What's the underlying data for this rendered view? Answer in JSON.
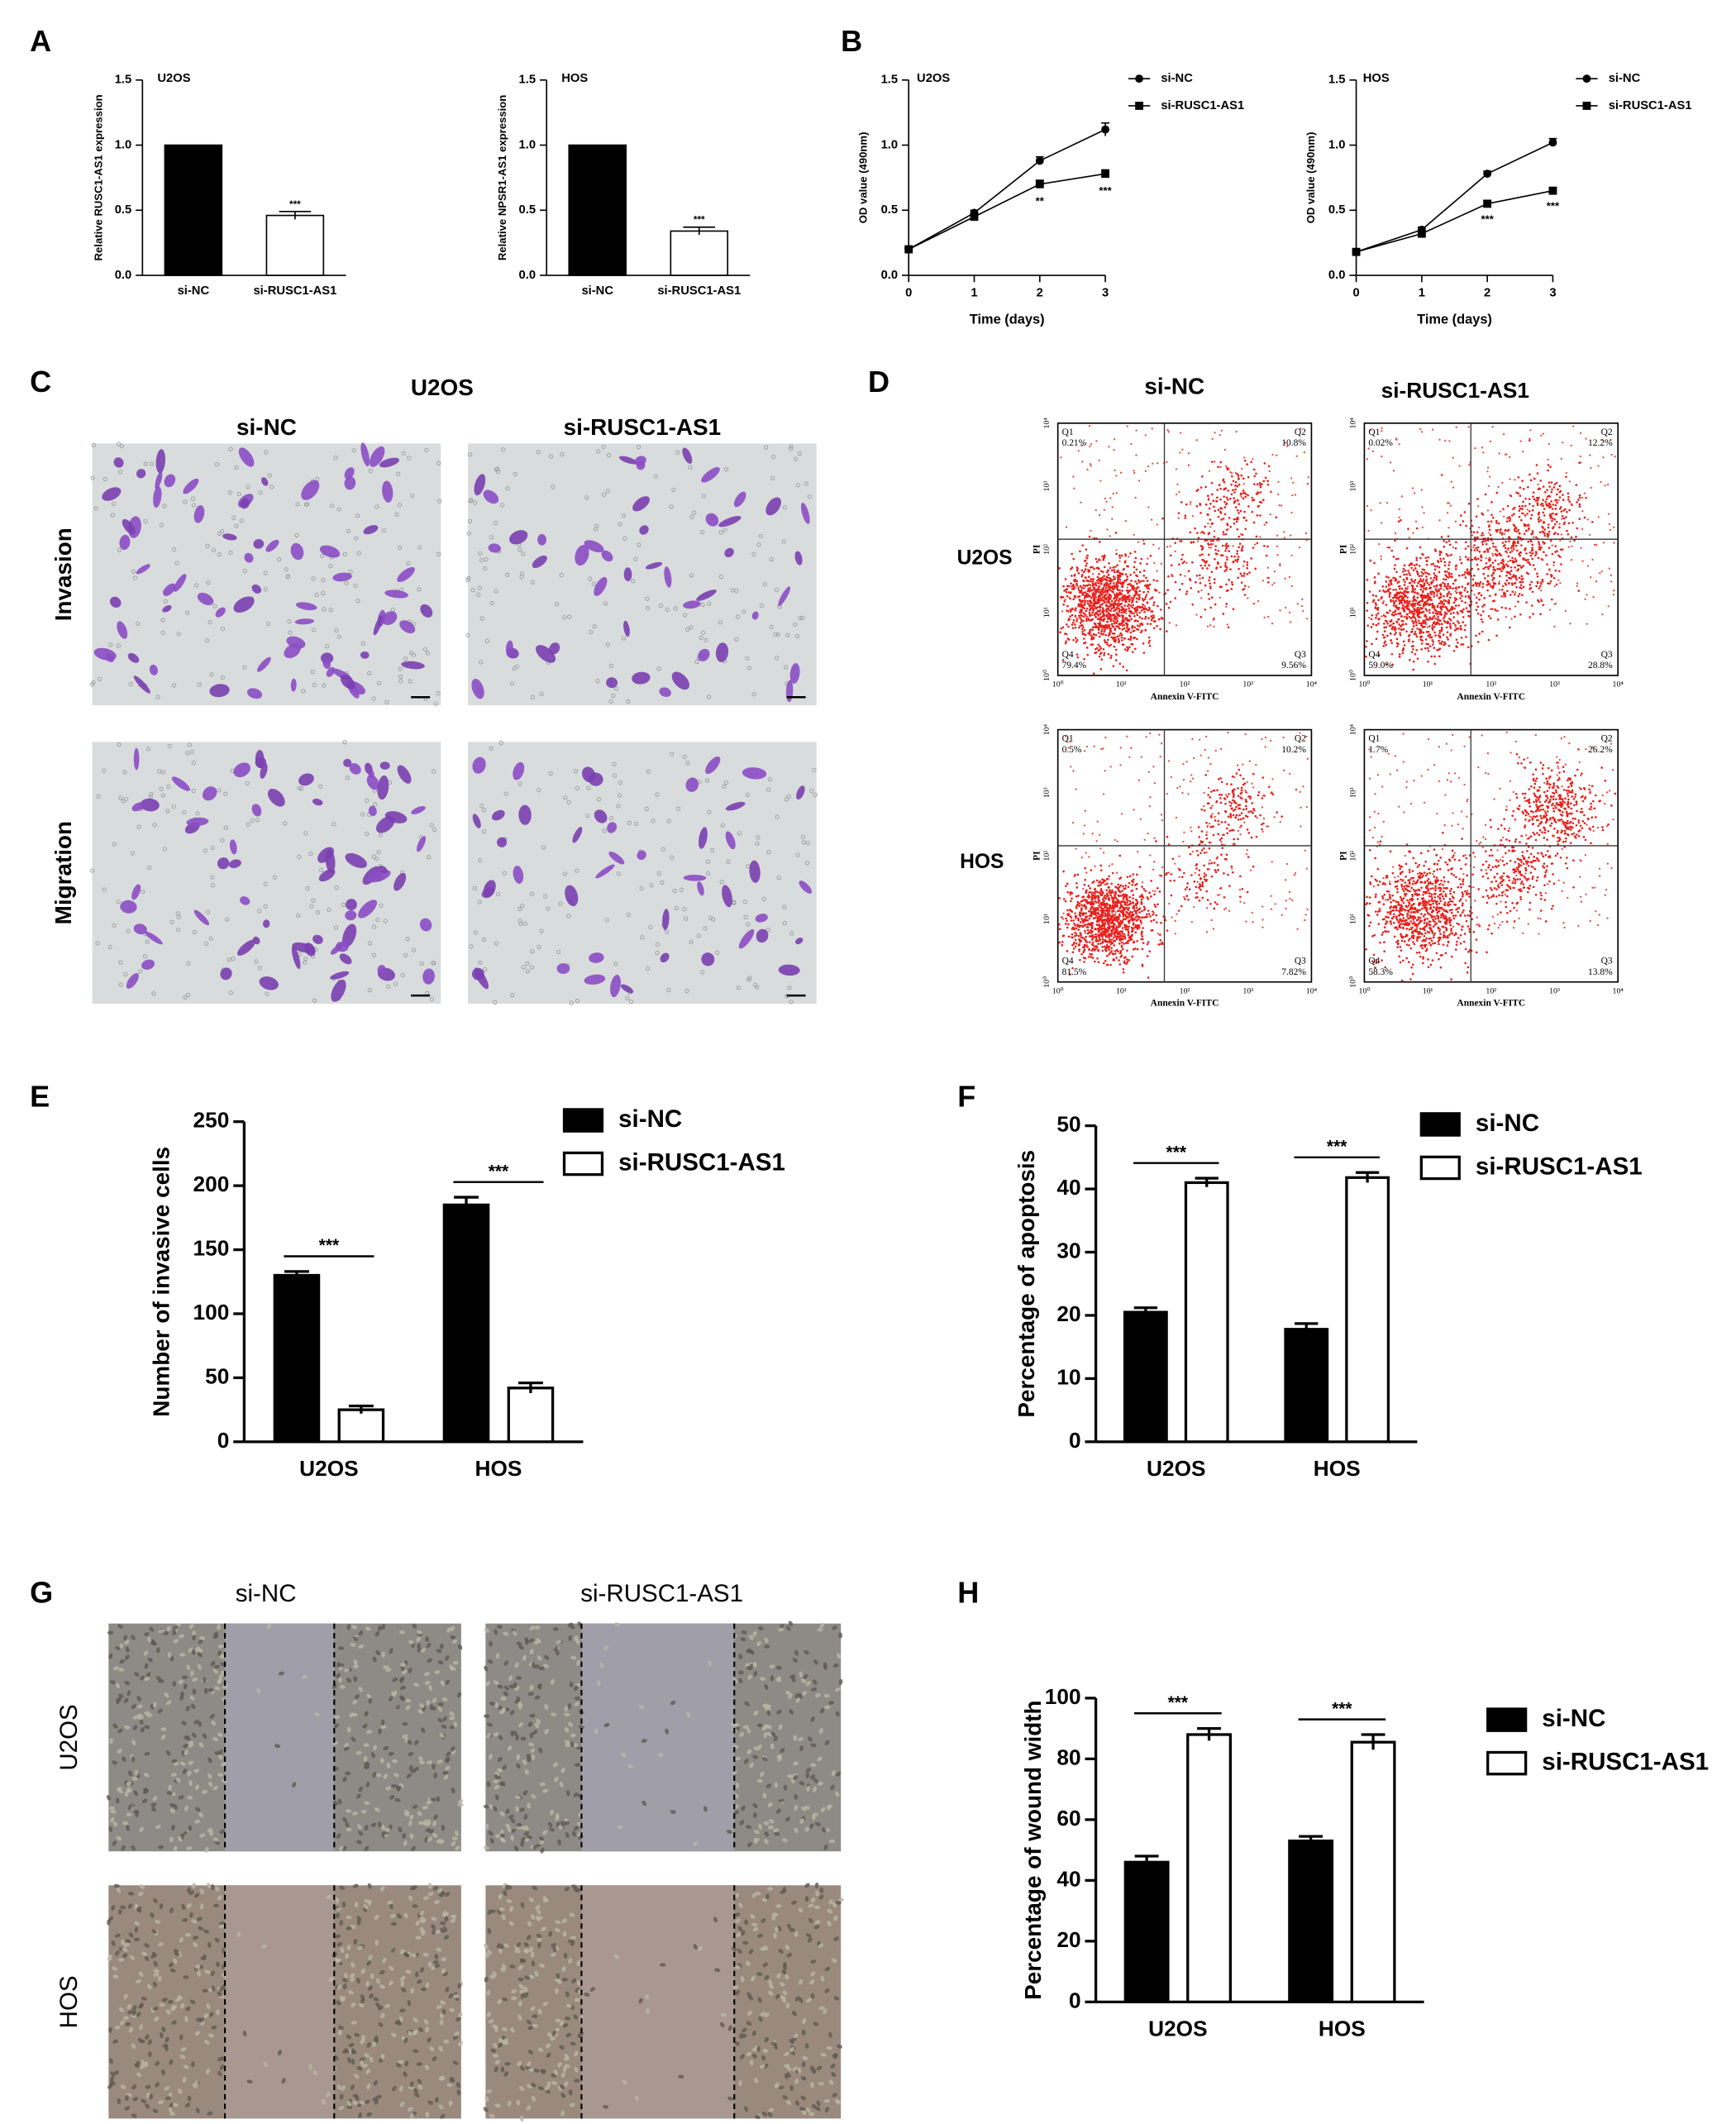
{
  "panels": [
    "A",
    "B",
    "C",
    "D",
    "E",
    "F",
    "G",
    "H"
  ],
  "chart_data": [
    {
      "type": "bar",
      "title": "U2OS",
      "y_label": "Relative RUSC1-AS1 expression",
      "categories": [
        "si-NC",
        "si-RUSC1-AS1"
      ],
      "values": [
        1.0,
        0.46
      ],
      "errors": [
        0,
        0.03
      ],
      "colors": [
        "#000000",
        "#ffffff"
      ],
      "ylim": [
        0,
        1.5
      ],
      "yticks": [
        {
          "value": 0,
          "label": "0.0"
        },
        0.5,
        {
          "value": 1,
          "label": "1.0"
        },
        1.5
      ],
      "annotations": [
        {
          "category": 1,
          "text": "***"
        }
      ]
    },
    {
      "type": "bar",
      "title": "HOS",
      "y_label": "Relative NPSR1-AS1 expression",
      "categories": [
        "si-NC",
        "si-RUSC1-AS1"
      ],
      "values": [
        1.0,
        0.34
      ],
      "errors": [
        0,
        0.03
      ],
      "colors": [
        "#000000",
        "#ffffff"
      ],
      "ylim": [
        0,
        1.5
      ],
      "yticks": [
        {
          "value": 0,
          "label": "0.0"
        },
        0.5,
        {
          "value": 1,
          "label": "1.0"
        },
        1.5
      ],
      "annotations": [
        {
          "category": 1,
          "text": "***"
        }
      ]
    },
    {
      "type": "line",
      "title": "U2OS",
      "x_label": "Time (days)",
      "y_label": "OD value (490nm)",
      "x": [
        0,
        1,
        2,
        3
      ],
      "xlim": [
        0,
        3
      ],
      "xticks": [
        0,
        1,
        2,
        3
      ],
      "ylim": [
        0,
        1.5
      ],
      "yticks": [
        {
          "value": 0,
          "label": "0.0"
        },
        0.5,
        {
          "value": 1,
          "label": "1.0"
        },
        1.5
      ],
      "series": [
        {
          "name": "si-NC",
          "color": "#000000",
          "marker": "circle",
          "values": [
            0.2,
            0.48,
            0.88,
            1.12
          ],
          "errors": [
            0.01,
            0.02,
            0.03,
            0.05
          ]
        },
        {
          "name": "si-RUSC1-AS1",
          "color": "#000000",
          "marker": "square",
          "values": [
            0.2,
            0.45,
            0.7,
            0.78
          ],
          "errors": [
            0.01,
            0.02,
            0.03,
            0.03
          ]
        }
      ],
      "annotations": [
        {
          "x": 2,
          "text": "**"
        },
        {
          "x": 3,
          "text": "***"
        }
      ]
    },
    {
      "type": "line",
      "title": "HOS",
      "x_label": "Time (days)",
      "y_label": "OD value (490nm)",
      "x": [
        0,
        1,
        2,
        3
      ],
      "xlim": [
        0,
        3
      ],
      "xticks": [
        0,
        1,
        2,
        3
      ],
      "ylim": [
        0,
        1.5
      ],
      "yticks": [
        {
          "value": 0,
          "label": "0.0"
        },
        0.5,
        {
          "value": 1,
          "label": "1.0"
        },
        1.5
      ],
      "series": [
        {
          "name": "si-NC",
          "color": "#000000",
          "marker": "circle",
          "values": [
            0.18,
            0.35,
            0.78,
            1.02
          ],
          "errors": [
            0.01,
            0.02,
            0.02,
            0.03
          ]
        },
        {
          "name": "si-RUSC1-AS1",
          "color": "#000000",
          "marker": "square",
          "values": [
            0.18,
            0.32,
            0.55,
            0.65
          ],
          "errors": [
            0.01,
            0.02,
            0.02,
            0.02
          ]
        }
      ],
      "annotations": [
        {
          "x": 2,
          "text": "***"
        },
        {
          "x": 3,
          "text": "***"
        }
      ]
    },
    {
      "type": "bar",
      "y_label": "Number of invasive cells",
      "categories": [
        "U2OS",
        "HOS"
      ],
      "series": [
        {
          "name": "si-NC",
          "color": "#000000",
          "values": [
            130,
            185
          ],
          "errors": [
            3,
            6
          ]
        },
        {
          "name": "si-RUSC1-AS1",
          "color": "#ffffff",
          "values": [
            25,
            42
          ],
          "errors": [
            3,
            4
          ]
        }
      ],
      "ylim": [
        0,
        250
      ],
      "yticks": [
        0,
        50,
        100,
        150,
        200,
        250
      ],
      "annotations": [
        {
          "category": 0,
          "text": "***"
        },
        {
          "category": 1,
          "text": "***"
        }
      ]
    },
    {
      "type": "bar",
      "y_label": "Percentage of apoptosis",
      "categories": [
        "U2OS",
        "HOS"
      ],
      "series": [
        {
          "name": "si-NC",
          "color": "#000000",
          "values": [
            20.5,
            17.8
          ],
          "errors": [
            0.7,
            0.9
          ]
        },
        {
          "name": "si-RUSC1-AS1",
          "color": "#ffffff",
          "values": [
            41,
            41.8
          ],
          "errors": [
            0.7,
            0.8
          ]
        }
      ],
      "ylim": [
        0,
        50
      ],
      "yticks": [
        0,
        10,
        20,
        30,
        40,
        50
      ],
      "annotations": [
        {
          "category": 0,
          "text": "***"
        },
        {
          "category": 1,
          "text": "***"
        }
      ]
    },
    {
      "type": "bar",
      "y_label": "Percentage of wound width",
      "categories": [
        "U2OS",
        "HOS"
      ],
      "series": [
        {
          "name": "si-NC",
          "color": "#000000",
          "values": [
            46,
            53
          ],
          "errors": [
            2,
            1.5
          ]
        },
        {
          "name": "si-RUSC1-AS1",
          "color": "#ffffff",
          "values": [
            88,
            85.5
          ],
          "errors": [
            2,
            2.5
          ]
        }
      ],
      "ylim": [
        0,
        100
      ],
      "yticks": [
        0,
        20,
        40,
        60,
        80,
        100
      ],
      "annotations": [
        {
          "category": 0,
          "text": "***"
        },
        {
          "category": 1,
          "text": "***"
        }
      ]
    }
  ],
  "panel_c": {
    "title": "U2OS",
    "columns": [
      "si-NC",
      "si-RUSC1-AS1"
    ],
    "rows": [
      "Invasion",
      "Migration"
    ]
  },
  "panel_d": {
    "columns": [
      "si-NC",
      "si-RUSC1-AS1"
    ],
    "rows": [
      "U2OS",
      "HOS"
    ],
    "x_label": "Annexin V-FITC",
    "y_label": "PI",
    "ticks": [
      "10⁰",
      "10¹",
      "10²",
      "10³",
      "10⁴"
    ],
    "plots": [
      {
        "quadrants": [
          {
            "name": "Q1",
            "value": "0.21%"
          },
          {
            "name": "Q2",
            "value": "10.8%"
          },
          {
            "name": "Q3",
            "value": "9.56%"
          },
          {
            "name": "Q4",
            "value": "79.4%"
          }
        ]
      },
      {
        "quadrants": [
          {
            "name": "Q1",
            "value": "0.02%"
          },
          {
            "name": "Q2",
            "value": "12.2%"
          },
          {
            "name": "Q3",
            "value": "28.8%"
          },
          {
            "name": "Q4",
            "value": "59.0%"
          }
        ]
      },
      {
        "quadrants": [
          {
            "name": "Q1",
            "value": "0.5%"
          },
          {
            "name": "Q2",
            "value": "10.2%"
          },
          {
            "name": "Q3",
            "value": "7.82%"
          },
          {
            "name": "Q4",
            "value": "81.5%"
          }
        ]
      },
      {
        "quadrants": [
          {
            "name": "Q1",
            "value": "1.7%"
          },
          {
            "name": "Q2",
            "value": "26.2%"
          },
          {
            "name": "Q3",
            "value": "13.8%"
          },
          {
            "name": "Q4",
            "value": "58.3%"
          }
        ]
      }
    ]
  },
  "panel_g": {
    "columns": [
      "si-NC",
      "si-RUSC1-AS1"
    ],
    "rows": [
      "U2OS",
      "HOS"
    ]
  }
}
